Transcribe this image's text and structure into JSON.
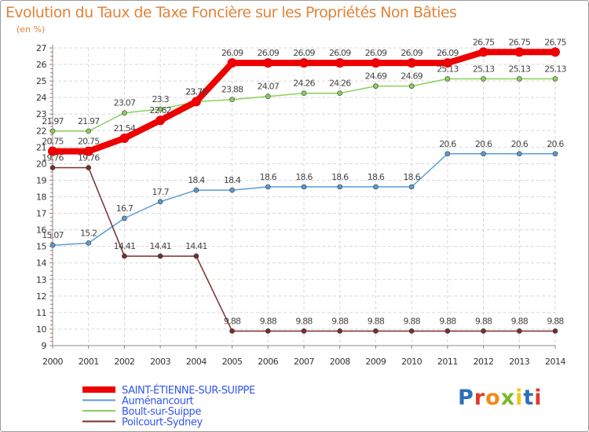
{
  "title": "Evolution du Taux de Taxe Foncière sur les Propriétés Non Bâties",
  "unit": "(en %)",
  "logo": "Proxiti",
  "logo_colors": [
    "#2e6fb7",
    "#e2392b",
    "#f08a1c",
    "#7ab929",
    "#f5c518",
    "#2e6fb7",
    "#e2392b"
  ],
  "chart_data": {
    "type": "line",
    "title": "Evolution du Taux de Taxe Foncière sur les Propriétés Non Bâties",
    "ylabel": "(en %)",
    "xlabel": "",
    "ylim": [
      9,
      27
    ],
    "yticks": [
      9,
      10,
      11,
      12,
      13,
      14,
      15,
      16,
      17,
      18,
      19,
      20,
      21,
      22,
      23,
      24,
      25,
      26,
      27
    ],
    "grid": true,
    "legend_position": "bottom-left",
    "x": [
      "2000",
      "2001",
      "2002",
      "2003",
      "2004",
      "2005",
      "2006",
      "2007",
      "2008",
      "2009",
      "2010",
      "2011",
      "2012",
      "2013",
      "2014"
    ],
    "series": [
      {
        "name": "SAINT-ÉTIENNE-SUR-SUIPPE",
        "color": "#ee0000",
        "highlight": true,
        "values": [
          20.75,
          20.75,
          21.54,
          22.62,
          23.75,
          26.09,
          26.09,
          26.09,
          26.09,
          26.09,
          26.09,
          26.09,
          26.75,
          26.75,
          26.75
        ],
        "labels": [
          "20.75",
          "20.75",
          "21.54",
          "22.62",
          "23.75",
          "26.09",
          "26.09",
          "26.09",
          "26.09",
          "26.09",
          "26.09",
          "26.09",
          "26.75",
          "26.75",
          "26.75"
        ]
      },
      {
        "name": "Auménancourt",
        "color": "#5b9bd5",
        "highlight": false,
        "values": [
          15.07,
          15.2,
          16.7,
          17.7,
          18.4,
          18.4,
          18.6,
          18.6,
          18.6,
          18.6,
          18.6,
          20.6,
          20.6,
          20.6,
          20.6
        ],
        "labels": [
          "15.07",
          "15.2",
          "16.7",
          "17.7",
          "18.4",
          "18.4",
          "18.6",
          "18.6",
          "18.6",
          "18.6",
          "18.6",
          "20.6",
          "20.6",
          "20.6",
          "20.6"
        ]
      },
      {
        "name": "Boult-sur-Suippe",
        "color": "#88d15a",
        "highlight": false,
        "values": [
          21.97,
          21.97,
          23.07,
          23.3,
          23.75,
          23.88,
          24.07,
          24.26,
          24.26,
          24.69,
          24.69,
          25.13,
          25.13,
          25.13,
          25.13
        ],
        "labels": [
          "21.97",
          "21.97",
          "23.07",
          "23.3",
          "23.75",
          "23.88",
          "24.07",
          "24.26",
          "24.26",
          "24.69",
          "24.69",
          "25.13",
          "25.13",
          "25.13",
          "25.13"
        ]
      },
      {
        "name": "Poilcourt-Sydney",
        "color": "#7a2e2e",
        "highlight": false,
        "values": [
          19.76,
          19.76,
          14.41,
          14.41,
          14.41,
          9.88,
          9.88,
          9.88,
          9.88,
          9.88,
          9.88,
          9.88,
          9.88,
          9.88,
          9.88
        ],
        "labels": [
          "19.76",
          "19.76",
          "14.41",
          "14.41",
          "14.41",
          "9.88",
          "9.88",
          "9.88",
          "9.88",
          "9.88",
          "9.88",
          "9.88",
          "9.88",
          "9.88",
          "9.88"
        ]
      }
    ]
  }
}
